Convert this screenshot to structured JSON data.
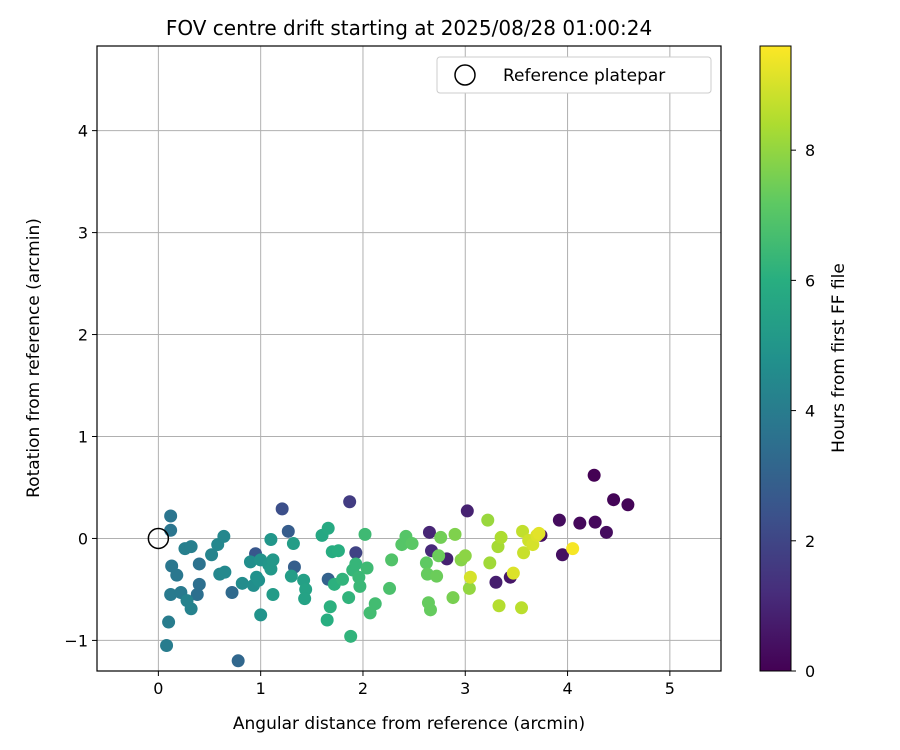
{
  "chart_data": {
    "type": "scatter",
    "title": "FOV centre drift starting at 2025/08/28 01:00:24",
    "xlabel": "Angular distance from reference (arcmin)",
    "ylabel": "Rotation from reference (arcmin)",
    "xlim": [
      -0.6,
      5.5
    ],
    "ylim": [
      -1.3,
      4.83
    ],
    "xticks": [
      "0",
      "1",
      "2",
      "3",
      "4",
      "5"
    ],
    "yticks": [
      "−1",
      "0",
      "1",
      "2",
      "3",
      "4"
    ],
    "grid": true,
    "legend": {
      "location": "top-right",
      "entries": [
        "Reference platepar"
      ]
    },
    "reference_point": {
      "x": 0,
      "y": 0
    },
    "colorbar": {
      "label": "Hours from first FF file",
      "range": [
        0,
        9.6
      ],
      "ticks": [
        "0",
        "2",
        "4",
        "6",
        "8"
      ],
      "colormap": "viridis"
    },
    "points": [
      {
        "x": 4.26,
        "y": 0.62,
        "t": 0.0
      },
      {
        "x": 4.45,
        "y": 0.38,
        "t": 0.1
      },
      {
        "x": 4.59,
        "y": 0.33,
        "t": 0.1
      },
      {
        "x": 4.27,
        "y": 0.16,
        "t": 0.2
      },
      {
        "x": 4.12,
        "y": 0.15,
        "t": 0.2
      },
      {
        "x": 4.38,
        "y": 0.06,
        "t": 0.3
      },
      {
        "x": 3.92,
        "y": 0.18,
        "t": 0.3
      },
      {
        "x": 3.95,
        "y": -0.16,
        "t": 0.4
      },
      {
        "x": 3.74,
        "y": 0.03,
        "t": 0.4
      },
      {
        "x": 3.44,
        "y": -0.38,
        "t": 0.6
      },
      {
        "x": 3.3,
        "y": -0.43,
        "t": 0.8
      },
      {
        "x": 3.02,
        "y": 0.27,
        "t": 0.9
      },
      {
        "x": 2.82,
        "y": -0.2,
        "t": 0.9
      },
      {
        "x": 2.65,
        "y": 0.06,
        "t": 1.0
      },
      {
        "x": 2.67,
        "y": -0.12,
        "t": 1.1
      },
      {
        "x": 1.87,
        "y": 0.36,
        "t": 1.7
      },
      {
        "x": 1.93,
        "y": -0.14,
        "t": 1.9
      },
      {
        "x": 1.21,
        "y": 0.29,
        "t": 2.3
      },
      {
        "x": 0.95,
        "y": -0.15,
        "t": 2.6
      },
      {
        "x": 1.27,
        "y": 0.07,
        "t": 2.8
      },
      {
        "x": 1.33,
        "y": -0.28,
        "t": 2.9
      },
      {
        "x": 1.66,
        "y": -0.4,
        "t": 3.0
      },
      {
        "x": 0.78,
        "y": -1.2,
        "t": 3.2
      },
      {
        "x": 0.72,
        "y": -0.53,
        "t": 3.3
      },
      {
        "x": 0.4,
        "y": -0.45,
        "t": 3.5
      },
      {
        "x": 0.38,
        "y": -0.55,
        "t": 3.5
      },
      {
        "x": 0.4,
        "y": -0.25,
        "t": 3.6
      },
      {
        "x": 0.12,
        "y": 0.22,
        "t": 3.7
      },
      {
        "x": 0.12,
        "y": 0.08,
        "t": 3.7
      },
      {
        "x": 0.13,
        "y": -0.27,
        "t": 3.8
      },
      {
        "x": 0.18,
        "y": -0.36,
        "t": 3.8
      },
      {
        "x": 0.12,
        "y": -0.55,
        "t": 3.9
      },
      {
        "x": 0.22,
        "y": -0.53,
        "t": 3.9
      },
      {
        "x": 0.1,
        "y": -0.82,
        "t": 4.0
      },
      {
        "x": 0.08,
        "y": -1.05,
        "t": 4.0
      },
      {
        "x": 0.26,
        "y": -0.1,
        "t": 4.1
      },
      {
        "x": 0.32,
        "y": -0.08,
        "t": 4.1
      },
      {
        "x": 0.28,
        "y": -0.61,
        "t": 4.2
      },
      {
        "x": 0.32,
        "y": -0.69,
        "t": 4.2
      },
      {
        "x": 0.52,
        "y": -0.16,
        "t": 4.3
      },
      {
        "x": 0.58,
        "y": -0.06,
        "t": 4.4
      },
      {
        "x": 0.64,
        "y": 0.02,
        "t": 4.4
      },
      {
        "x": 0.6,
        "y": -0.35,
        "t": 4.4
      },
      {
        "x": 0.65,
        "y": -0.33,
        "t": 4.5
      },
      {
        "x": 0.82,
        "y": -0.44,
        "t": 4.6
      },
      {
        "x": 0.9,
        "y": -0.23,
        "t": 4.7
      },
      {
        "x": 0.93,
        "y": -0.46,
        "t": 4.7
      },
      {
        "x": 0.96,
        "y": -0.38,
        "t": 4.8
      },
      {
        "x": 0.98,
        "y": -0.41,
        "t": 4.8
      },
      {
        "x": 1.0,
        "y": -0.21,
        "t": 4.9
      },
      {
        "x": 1.0,
        "y": -0.75,
        "t": 4.9
      },
      {
        "x": 1.1,
        "y": -0.01,
        "t": 5.0
      },
      {
        "x": 1.08,
        "y": -0.26,
        "t": 5.0
      },
      {
        "x": 1.1,
        "y": -0.3,
        "t": 5.1
      },
      {
        "x": 1.12,
        "y": -0.21,
        "t": 5.1
      },
      {
        "x": 1.12,
        "y": -0.55,
        "t": 5.2
      },
      {
        "x": 1.3,
        "y": -0.37,
        "t": 5.3
      },
      {
        "x": 1.32,
        "y": -0.05,
        "t": 5.3
      },
      {
        "x": 1.42,
        "y": -0.41,
        "t": 5.4
      },
      {
        "x": 1.44,
        "y": -0.5,
        "t": 5.5
      },
      {
        "x": 1.43,
        "y": -0.59,
        "t": 5.5
      },
      {
        "x": 1.6,
        "y": 0.03,
        "t": 5.7
      },
      {
        "x": 1.66,
        "y": 0.1,
        "t": 5.8
      },
      {
        "x": 1.7,
        "y": -0.13,
        "t": 5.9
      },
      {
        "x": 1.76,
        "y": -0.12,
        "t": 6.0
      },
      {
        "x": 1.65,
        "y": -0.8,
        "t": 6.0
      },
      {
        "x": 1.68,
        "y": -0.67,
        "t": 6.1
      },
      {
        "x": 1.72,
        "y": -0.45,
        "t": 6.1
      },
      {
        "x": 1.8,
        "y": -0.4,
        "t": 6.2
      },
      {
        "x": 1.86,
        "y": -0.58,
        "t": 6.2
      },
      {
        "x": 1.88,
        "y": -0.96,
        "t": 6.2
      },
      {
        "x": 1.9,
        "y": -0.31,
        "t": 6.3
      },
      {
        "x": 1.93,
        "y": -0.25,
        "t": 6.3
      },
      {
        "x": 1.96,
        "y": -0.38,
        "t": 6.4
      },
      {
        "x": 1.97,
        "y": -0.47,
        "t": 6.4
      },
      {
        "x": 2.02,
        "y": 0.04,
        "t": 6.5
      },
      {
        "x": 2.04,
        "y": -0.29,
        "t": 6.5
      },
      {
        "x": 2.07,
        "y": -0.73,
        "t": 6.6
      },
      {
        "x": 2.12,
        "y": -0.64,
        "t": 6.6
      },
      {
        "x": 2.26,
        "y": -0.49,
        "t": 6.8
      },
      {
        "x": 2.28,
        "y": -0.21,
        "t": 6.9
      },
      {
        "x": 2.38,
        "y": -0.06,
        "t": 7.0
      },
      {
        "x": 2.42,
        "y": 0.02,
        "t": 7.0
      },
      {
        "x": 2.48,
        "y": -0.05,
        "t": 7.1
      },
      {
        "x": 2.62,
        "y": -0.24,
        "t": 7.2
      },
      {
        "x": 2.63,
        "y": -0.35,
        "t": 7.3
      },
      {
        "x": 2.64,
        "y": -0.63,
        "t": 7.3
      },
      {
        "x": 2.66,
        "y": -0.7,
        "t": 7.3
      },
      {
        "x": 2.72,
        "y": -0.37,
        "t": 7.4
      },
      {
        "x": 2.74,
        "y": -0.17,
        "t": 7.4
      },
      {
        "x": 2.76,
        "y": 0.01,
        "t": 7.5
      },
      {
        "x": 2.88,
        "y": -0.58,
        "t": 7.6
      },
      {
        "x": 2.9,
        "y": 0.04,
        "t": 7.7
      },
      {
        "x": 2.96,
        "y": -0.21,
        "t": 7.8
      },
      {
        "x": 3.0,
        "y": -0.17,
        "t": 7.9
      },
      {
        "x": 3.04,
        "y": -0.49,
        "t": 8.0
      },
      {
        "x": 3.22,
        "y": 0.18,
        "t": 8.1
      },
      {
        "x": 3.24,
        "y": -0.24,
        "t": 8.2
      },
      {
        "x": 3.32,
        "y": -0.08,
        "t": 8.3
      },
      {
        "x": 3.35,
        "y": 0.01,
        "t": 8.4
      },
      {
        "x": 3.33,
        "y": -0.66,
        "t": 8.5
      },
      {
        "x": 3.55,
        "y": -0.68,
        "t": 8.6
      },
      {
        "x": 3.56,
        "y": 0.07,
        "t": 8.7
      },
      {
        "x": 3.57,
        "y": -0.14,
        "t": 8.8
      },
      {
        "x": 3.62,
        "y": -0.02,
        "t": 8.9
      },
      {
        "x": 3.66,
        "y": -0.06,
        "t": 9.0
      },
      {
        "x": 3.7,
        "y": 0.03,
        "t": 9.1
      },
      {
        "x": 3.72,
        "y": 0.05,
        "t": 9.2
      },
      {
        "x": 3.05,
        "y": -0.38,
        "t": 9.0
      },
      {
        "x": 3.47,
        "y": -0.34,
        "t": 9.1
      },
      {
        "x": 4.05,
        "y": -0.1,
        "t": 9.5
      }
    ]
  }
}
